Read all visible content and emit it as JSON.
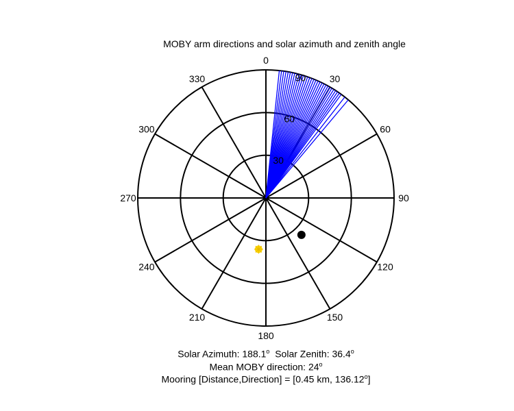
{
  "chart_data": {
    "type": "polar",
    "title": "MOBY arm directions and solar azimuth and zenith angle",
    "r_max": 90,
    "radial_ticks": [
      30,
      60,
      90
    ],
    "angle_ticks": [
      "0",
      "30",
      "60",
      "90",
      "120",
      "150",
      "180",
      "210",
      "240",
      "270",
      "300",
      "330"
    ],
    "angle_tick_values": [
      0,
      30,
      60,
      90,
      120,
      150,
      180,
      210,
      240,
      270,
      300,
      330
    ],
    "arm_directions_deg": [
      6,
      7,
      8,
      9,
      10,
      11,
      12,
      13,
      14,
      15,
      16,
      17,
      18,
      19,
      20,
      21,
      22,
      23,
      24,
      25,
      26,
      27,
      28,
      29,
      30,
      31,
      32,
      33,
      34,
      35,
      36,
      38,
      40
    ],
    "arm_radius": 90,
    "arm_color": "#0000ff",
    "sun": {
      "azimuth": 188.1,
      "zenith": 36.4,
      "color": "#ffd700"
    },
    "mooring": {
      "direction": 136.12,
      "distance_km": 0.45,
      "plot_radius": 36,
      "color": "#000000"
    }
  },
  "caption": {
    "line1_a": "Solar Azimuth: 188.1",
    "line1_b": "  Solar Zenith: 36.4",
    "line2": "Mean MOBY direction: 24",
    "line3_a": "Mooring [Distance,Direction] = [0.45 km, 136.12",
    "line3_b": "]",
    "degree_mark": "o"
  }
}
